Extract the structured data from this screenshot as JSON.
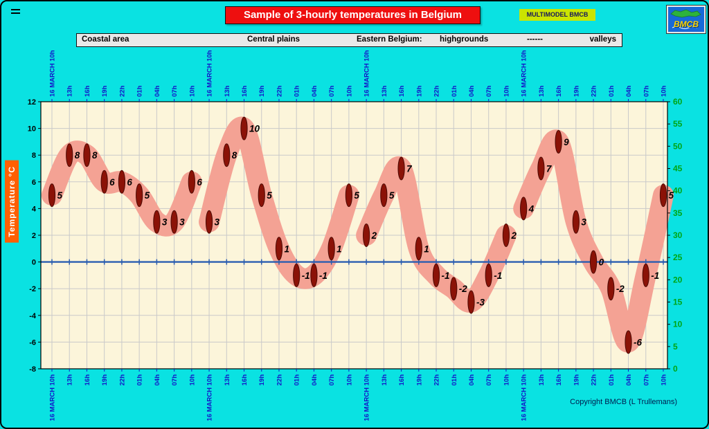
{
  "header": {
    "title": "Sample of 3-hourly temperatures in Belgium",
    "badge": "MULTIMODEL BMCB",
    "logo_text": "BMCB"
  },
  "region_bar": {
    "coastal": "Coastal area",
    "central": "Central plains",
    "eastern": "Eastern Belgium:",
    "highgrounds": "highgrounds",
    "dashes": "------",
    "valleys": "valleys"
  },
  "chart_data": {
    "type": "line",
    "title": "Sample of 3-hourly temperatures in Belgium",
    "ylabel": "Temperature °C",
    "y_axis_left": {
      "min": -8,
      "max": 12,
      "step": 2
    },
    "y_axis_right": {
      "min": 0,
      "max": 60,
      "step": 5
    },
    "time_labels": [
      "16 MARCH 10h",
      "13h",
      "16h",
      "19h",
      "22h",
      "01h",
      "04h",
      "07h",
      "10h"
    ],
    "series": [
      {
        "name": "Coastal area",
        "values": [
          5,
          8,
          8,
          6,
          6,
          5,
          3,
          3,
          6
        ]
      },
      {
        "name": "Central plains",
        "values": [
          3,
          8,
          10,
          5,
          1,
          -1,
          -1,
          1,
          5
        ]
      },
      {
        "name": "Eastern Belgium: highgrounds",
        "values": [
          2,
          5,
          7,
          1,
          -1,
          -2,
          -3,
          -1,
          2
        ]
      },
      {
        "name": "Eastern Belgium: valleys",
        "values": [
          4,
          7,
          9,
          3,
          0,
          -2,
          -6,
          -1,
          5
        ]
      }
    ],
    "grid": true,
    "legend_position": "top-bar",
    "colors": {
      "plot_bg": "#fcf5da",
      "grid": "#c9c9c9",
      "band": "#f4a294",
      "marker": "#8b1207",
      "marker_edge": "#4d0a04",
      "zero_line": "#2a5db0",
      "left_axis_text": "#000000",
      "right_axis_text": "#00a513",
      "x_axis_text": "#1414c8",
      "value_label": "#000000"
    }
  },
  "footer": {
    "copyright": "Copyright BMCB (L Trullemans)"
  }
}
